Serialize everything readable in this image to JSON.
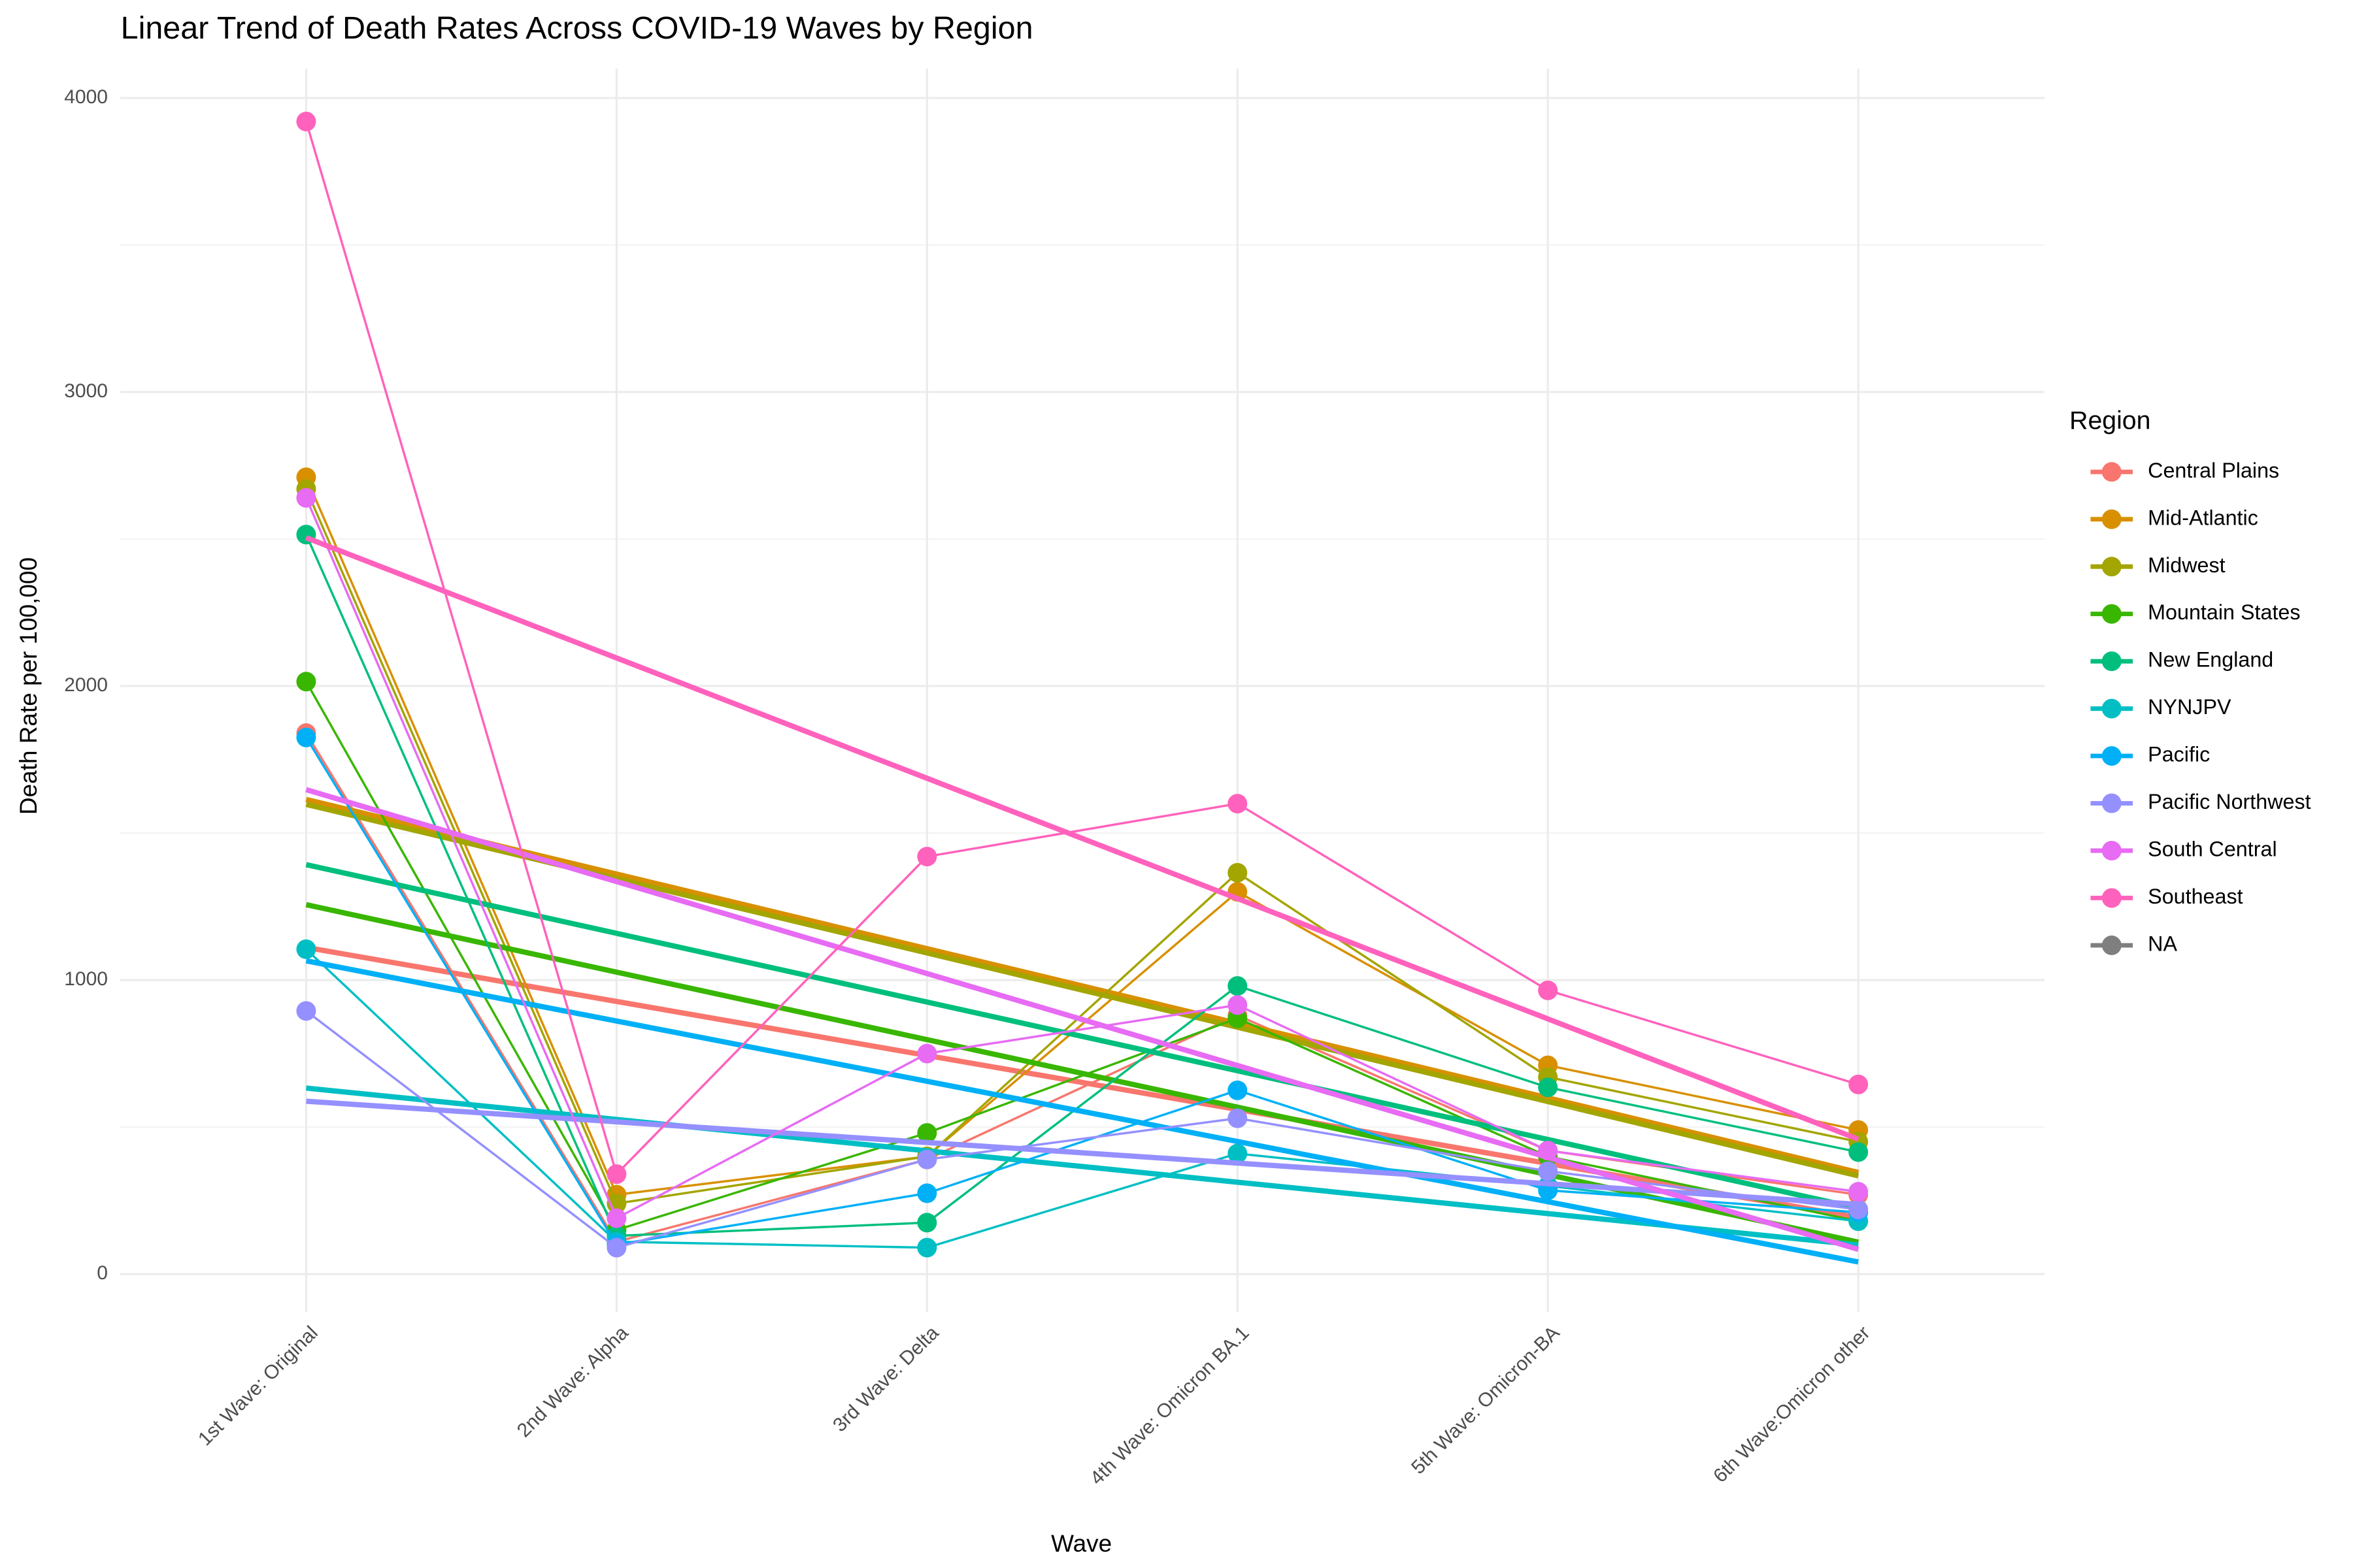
{
  "chart_data": {
    "type": "line",
    "title": "Linear Trend of Death Rates Across COVID-19 Waves by Region",
    "x_label": "Wave",
    "y_label": "Death Rate per 100,000",
    "legend_title": "Region",
    "legend_position": "right",
    "grid": true,
    "trend_line": "linear",
    "categories": [
      "1st Wave: Original",
      "2nd Wave: Alpha",
      "3rd Wave: Delta",
      "4th Wave: Omicron BA.1",
      "5th Wave: Omicron-BA",
      "6th Wave:Omicron other"
    ],
    "ylim": [
      -130,
      4100
    ],
    "yticks": [
      0,
      1000,
      2000,
      3000,
      4000
    ],
    "minor_yticks": [
      500,
      1500,
      2500,
      3500
    ],
    "series": [
      {
        "name": "Central Plains",
        "color": "#F8766D",
        "values": [
          1840,
          110,
          390,
          880,
          420,
          270
        ]
      },
      {
        "name": "Mid-Atlantic",
        "color": "#D89000",
        "values": [
          2710,
          270,
          400,
          1300,
          710,
          490
        ]
      },
      {
        "name": "Midwest",
        "color": "#A3A500",
        "values": [
          2670,
          240,
          400,
          1365,
          670,
          450
        ]
      },
      {
        "name": "Mountain States",
        "color": "#39B600",
        "values": [
          2015,
          150,
          480,
          870,
          400,
          180
        ]
      },
      {
        "name": "New England",
        "color": "#00BF7D",
        "values": [
          2515,
          130,
          175,
          980,
          635,
          415
        ]
      },
      {
        "name": "NYNJPV",
        "color": "#00BFC4",
        "values": [
          1105,
          110,
          90,
          410,
          300,
          180
        ]
      },
      {
        "name": "Pacific",
        "color": "#00B0F6",
        "values": [
          1825,
          100,
          275,
          625,
          285,
          210
        ]
      },
      {
        "name": "Pacific Northwest",
        "color": "#9590FF",
        "values": [
          895,
          90,
          390,
          530,
          350,
          220
        ]
      },
      {
        "name": "South Central",
        "color": "#E76BF3",
        "values": [
          2640,
          190,
          750,
          915,
          420,
          280
        ]
      },
      {
        "name": "Southeast",
        "color": "#FF62BC",
        "values": [
          3920,
          340,
          1420,
          1600,
          965,
          645
        ]
      },
      {
        "name": "NA",
        "color": "#7F7F7F",
        "values": [
          null,
          null,
          null,
          null,
          null,
          null
        ]
      }
    ]
  }
}
